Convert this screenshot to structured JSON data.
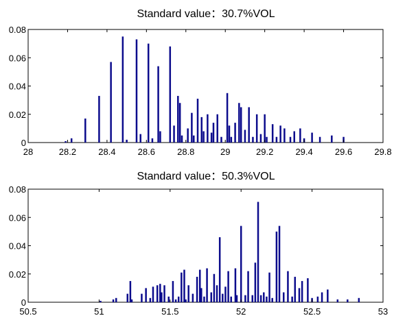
{
  "chart_data": [
    {
      "type": "bar",
      "title": "Standard value：30.7%VOL",
      "xlim": [
        28,
        29.8
      ],
      "ylim": [
        0,
        0.08
      ],
      "xticks": [
        28,
        28.2,
        28.4,
        28.6,
        28.8,
        29,
        29.2,
        29.4,
        29.6,
        29.8
      ],
      "xtick_labels": [
        "28",
        "28.2",
        "28.4",
        "28.6",
        "28.8",
        "29",
        "29.2",
        "29.4",
        "29.6",
        "29.8"
      ],
      "yticks": [
        0,
        0.02,
        0.04,
        0.06,
        0.08
      ],
      "ytick_labels": [
        "0",
        "0.02",
        "0.04",
        "0.06",
        "0.08"
      ],
      "bar_color": "#0b0b8c",
      "x": [
        28.19,
        28.22,
        28.29,
        28.36,
        28.42,
        28.48,
        28.5,
        28.55,
        28.57,
        28.61,
        28.63,
        28.66,
        28.67,
        28.72,
        28.74,
        28.76,
        28.77,
        28.78,
        28.81,
        28.83,
        28.84,
        28.86,
        28.88,
        28.89,
        28.91,
        28.93,
        28.94,
        28.96,
        28.98,
        29.01,
        29.02,
        29.03,
        29.05,
        29.07,
        29.08,
        29.1,
        29.12,
        29.14,
        29.16,
        29.18,
        29.2,
        29.21,
        29.24,
        29.26,
        29.28,
        29.3,
        29.33,
        29.35,
        29.38,
        29.4,
        29.44,
        29.48,
        29.54,
        29.6
      ],
      "values": [
        0.001,
        0.003,
        0.017,
        0.033,
        0.057,
        0.075,
        0.002,
        0.073,
        0.006,
        0.07,
        0.003,
        0.054,
        0.008,
        0.068,
        0.012,
        0.033,
        0.028,
        0.005,
        0.01,
        0.021,
        0.005,
        0.031,
        0.018,
        0.008,
        0.02,
        0.007,
        0.014,
        0.02,
        0.004,
        0.035,
        0.012,
        0.004,
        0.014,
        0.028,
        0.025,
        0.009,
        0.025,
        0.004,
        0.02,
        0.006,
        0.02,
        0.004,
        0.013,
        0.004,
        0.012,
        0.01,
        0.004,
        0.008,
        0.01,
        0.003,
        0.007,
        0.004,
        0.005,
        0.004
      ]
    },
    {
      "type": "bar",
      "title": "Standard value：50.3%VOL",
      "xlim": [
        50.5,
        53
      ],
      "ylim": [
        0,
        0.08
      ],
      "xticks": [
        50.5,
        51,
        51.5,
        52,
        52.5,
        53
      ],
      "xtick_labels": [
        "50.5",
        "51",
        "51.5",
        "52",
        "52.5",
        "53"
      ],
      "yticks": [
        0,
        0.02,
        0.04,
        0.06,
        0.08
      ],
      "ytick_labels": [
        "0",
        "0.02",
        "0.04",
        "0.06",
        "0.08"
      ],
      "bar_color": "#0b0b8c",
      "x": [
        51.01,
        51.1,
        51.12,
        51.2,
        51.22,
        51.23,
        51.3,
        51.33,
        51.36,
        51.38,
        51.41,
        51.43,
        51.44,
        51.46,
        51.49,
        51.52,
        51.54,
        51.56,
        51.58,
        51.6,
        51.61,
        51.63,
        51.66,
        51.69,
        51.71,
        51.72,
        51.74,
        51.76,
        51.79,
        51.81,
        51.83,
        51.85,
        51.87,
        51.89,
        51.91,
        51.93,
        51.96,
        51.97,
        52.0,
        52.03,
        52.05,
        52.08,
        52.1,
        52.12,
        52.14,
        52.16,
        52.18,
        52.2,
        52.22,
        52.25,
        52.27,
        52.3,
        52.33,
        52.36,
        52.38,
        52.41,
        52.43,
        52.47,
        52.5,
        52.54,
        52.57,
        52.61,
        52.68,
        52.75,
        52.83
      ],
      "values": [
        0.001,
        0.002,
        0.003,
        0.006,
        0.015,
        0.002,
        0.006,
        0.01,
        0.003,
        0.011,
        0.012,
        0.013,
        0.007,
        0.012,
        0.004,
        0.015,
        0.002,
        0.004,
        0.021,
        0.023,
        0.002,
        0.012,
        0.006,
        0.018,
        0.023,
        0.01,
        0.004,
        0.024,
        0.007,
        0.02,
        0.012,
        0.046,
        0.006,
        0.011,
        0.022,
        0.004,
        0.024,
        0.005,
        0.054,
        0.005,
        0.022,
        0.005,
        0.028,
        0.071,
        0.005,
        0.007,
        0.004,
        0.021,
        0.003,
        0.05,
        0.054,
        0.007,
        0.022,
        0.004,
        0.018,
        0.01,
        0.015,
        0.017,
        0.003,
        0.004,
        0.007,
        0.009,
        0.002,
        0.002,
        0.003
      ]
    }
  ]
}
